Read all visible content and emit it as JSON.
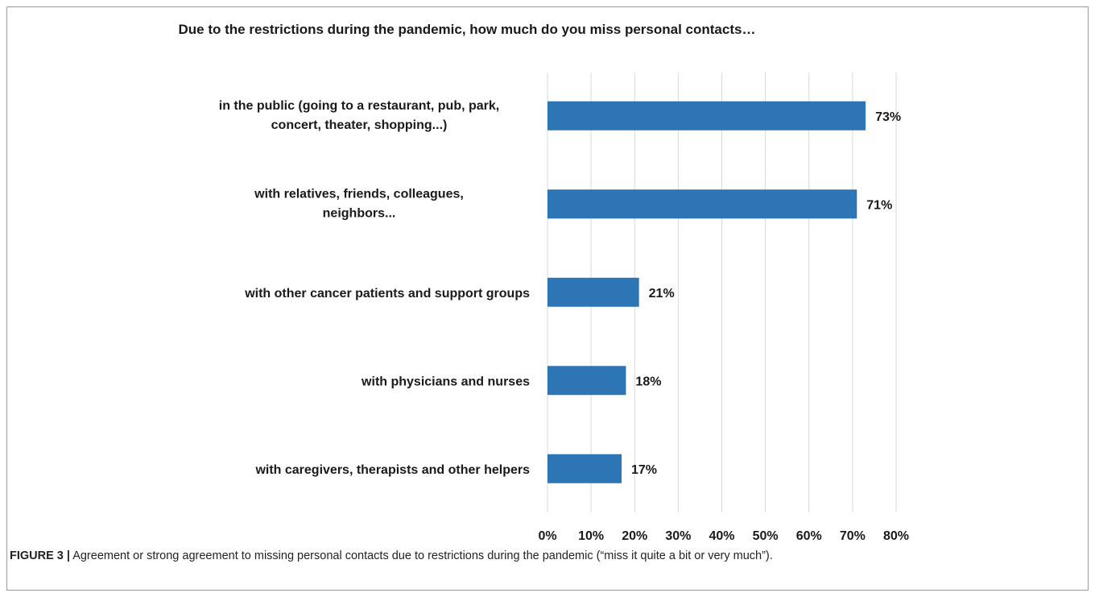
{
  "chart_data": {
    "type": "bar",
    "orientation": "horizontal",
    "title": "Due to the restrictions during the pandemic, how much do you miss personal contacts…",
    "categories": [
      "in the public (going to a restaurant, pub, park, concert, theater, shopping...)",
      "with relatives, friends, colleagues, neighbors...",
      "with other cancer patients and support groups",
      "with physicians and nurses",
      "with caregivers, therapists and other helpers"
    ],
    "values": [
      73,
      71,
      21,
      18,
      17
    ],
    "value_labels": [
      "73%",
      "71%",
      "21%",
      "18%",
      "17%"
    ],
    "xlim": [
      0,
      80
    ],
    "x_ticks": [
      "0%",
      "10%",
      "20%",
      "30%",
      "40%",
      "50%",
      "60%",
      "70%",
      "80%"
    ],
    "grid": true,
    "legend": "none",
    "bar_color": "#2e75b6"
  },
  "caption": {
    "label": "FIGURE 3 |",
    "text": " Agreement or strong agreement to missing personal contacts due to restrictions during the pandemic (“miss it quite a bit or very much”)."
  }
}
